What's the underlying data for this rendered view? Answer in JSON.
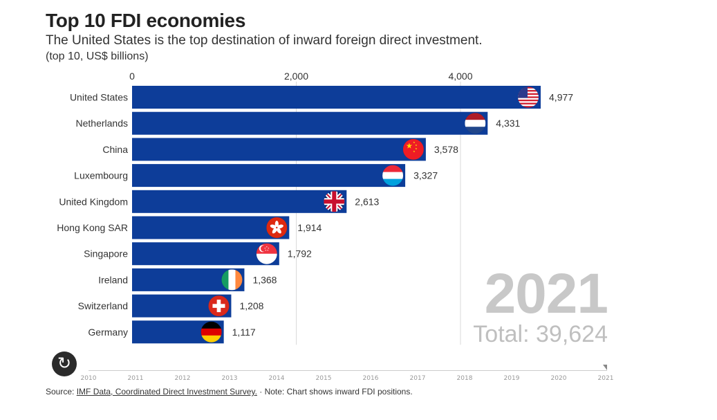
{
  "header": {
    "title": "Top 10 FDI economies",
    "subtitle": "The United States is the top destination of inward foreign direct investment.",
    "units": "(top 10, US$ billions)"
  },
  "overlay": {
    "year": "2021",
    "total": "Total: 39,624"
  },
  "timeline": {
    "years": [
      "2010",
      "2011",
      "2012",
      "2013",
      "2014",
      "2015",
      "2016",
      "2017",
      "2018",
      "2019",
      "2020",
      "2021"
    ],
    "current": "2021"
  },
  "footer": {
    "prefix": "Source: ",
    "link_text": "IMF Data, Coordinated Direct Investment Survey.",
    "note": " · Note: Chart shows inward FDI positions."
  },
  "colors": {
    "bar": "#0d3d99",
    "grid": "#d9d9d9"
  },
  "chart_data": {
    "type": "bar",
    "orientation": "horizontal",
    "title": "Top 10 FDI economies",
    "xlabel": "",
    "ylabel": "",
    "xlim": [
      0,
      5000
    ],
    "ticks": [
      0,
      2000,
      4000
    ],
    "tick_labels": [
      "0",
      "2,000",
      "4,000"
    ],
    "categories": [
      "United States",
      "Netherlands",
      "China",
      "Luxembourg",
      "United Kingdom",
      "Hong Kong SAR",
      "Singapore",
      "Ireland",
      "Switzerland",
      "Germany"
    ],
    "values": [
      4977,
      4331,
      3578,
      3327,
      2613,
      1914,
      1792,
      1368,
      1208,
      1117
    ],
    "value_labels": [
      "4,977",
      "4,331",
      "3,578",
      "3,327",
      "2,613",
      "1,914",
      "1,792",
      "1,368",
      "1,208",
      "1,117"
    ],
    "flags": [
      "us-flag",
      "netherlands-flag",
      "china-flag",
      "luxembourg-flag",
      "uk-flag",
      "hong-kong-flag",
      "singapore-flag",
      "ireland-flag",
      "switzerland-flag",
      "germany-flag"
    ]
  }
}
